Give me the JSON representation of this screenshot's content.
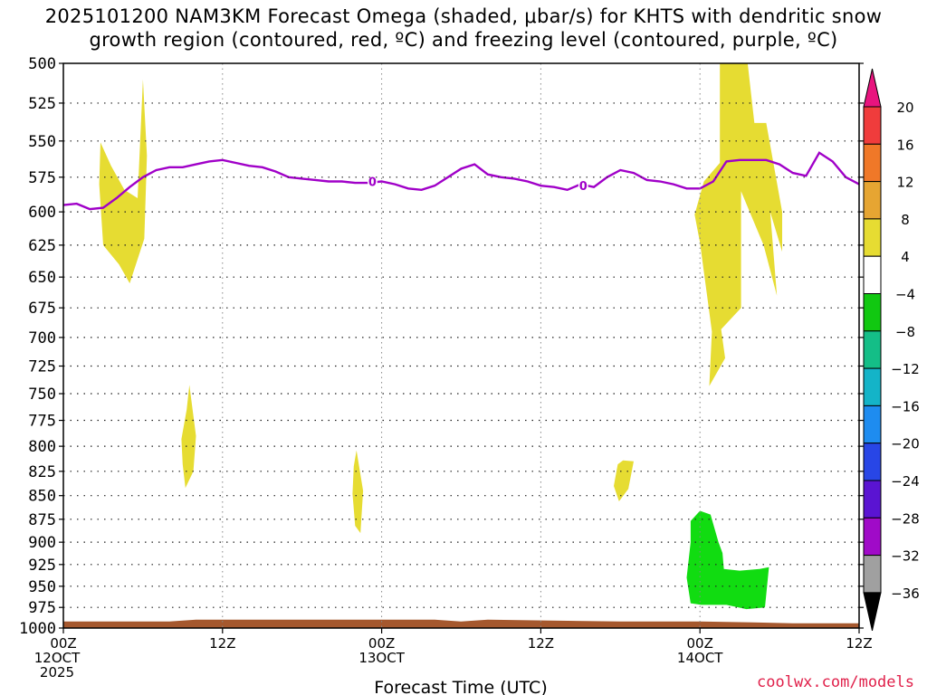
{
  "title_line1": "2025101200 NAM3KM Forecast Omega (shaded, μbar/s) for KHTS with dendritic snow",
  "title_line2": "growth region (contoured, red, ºC) and freezing level (contoured, purple, ºC)",
  "credit": "coolwx.com/models",
  "chart_data": {
    "type": "time-height cross section",
    "xlabel": "Forecast Time (UTC)",
    "x_ticks": [
      {
        "hour": 0,
        "lines": [
          "00Z",
          "12OCT",
          "2025"
        ]
      },
      {
        "hour": 12,
        "lines": [
          "12Z"
        ]
      },
      {
        "hour": 24,
        "lines": [
          "00Z",
          "13OCT"
        ]
      },
      {
        "hour": 36,
        "lines": [
          "12Z"
        ]
      },
      {
        "hour": 48,
        "lines": [
          "00Z",
          "14OCT"
        ]
      },
      {
        "hour": 60,
        "lines": [
          "12Z"
        ]
      }
    ],
    "x_range_hours": [
      0,
      60
    ],
    "y_levels_hpa": [
      500,
      525,
      550,
      575,
      600,
      625,
      650,
      675,
      700,
      725,
      750,
      775,
      800,
      825,
      850,
      875,
      900,
      925,
      950,
      975,
      1000
    ],
    "y_scale": "log-pressure, inverted",
    "grid": "dotted",
    "freezing_level": {
      "color": "#a000c8",
      "label": "0",
      "points": [
        [
          0,
          595
        ],
        [
          1,
          594
        ],
        [
          2,
          598
        ],
        [
          3,
          597
        ],
        [
          4,
          590
        ],
        [
          5,
          582
        ],
        [
          6,
          575
        ],
        [
          7,
          570
        ],
        [
          8,
          568
        ],
        [
          9,
          568
        ],
        [
          10,
          566
        ],
        [
          11,
          564
        ],
        [
          12,
          563
        ],
        [
          13,
          565
        ],
        [
          14,
          567
        ],
        [
          15,
          568
        ],
        [
          16,
          571
        ],
        [
          17,
          575
        ],
        [
          18,
          576
        ],
        [
          19,
          577
        ],
        [
          20,
          578
        ],
        [
          21,
          578
        ],
        [
          22,
          579
        ],
        [
          23,
          579
        ],
        [
          24,
          578
        ],
        [
          25,
          580
        ],
        [
          26,
          583
        ],
        [
          27,
          584
        ],
        [
          28,
          581
        ],
        [
          29,
          575
        ],
        [
          30,
          569
        ],
        [
          31,
          566
        ],
        [
          32,
          573
        ],
        [
          33,
          575
        ],
        [
          34,
          576
        ],
        [
          35,
          578
        ],
        [
          36,
          581
        ],
        [
          37,
          582
        ],
        [
          38,
          584
        ],
        [
          39,
          580
        ],
        [
          40,
          582
        ],
        [
          41,
          575
        ],
        [
          42,
          570
        ],
        [
          43,
          572
        ],
        [
          44,
          577
        ],
        [
          45,
          578
        ],
        [
          46,
          580
        ],
        [
          47,
          583
        ],
        [
          48,
          583
        ],
        [
          49,
          578
        ],
        [
          50,
          564
        ],
        [
          51,
          563
        ],
        [
          52,
          563
        ],
        [
          53,
          563
        ],
        [
          54,
          566
        ],
        [
          55,
          572
        ],
        [
          56,
          574
        ],
        [
          57,
          558
        ],
        [
          58,
          564
        ],
        [
          59,
          575
        ],
        [
          60,
          580
        ]
      ],
      "value_labels": [
        {
          "hour": 23.3,
          "hpa": 578
        },
        {
          "hour": 39.2,
          "hpa": 581
        }
      ]
    },
    "omega_regions": [
      {
        "class": "4 to 8",
        "color": "#e6dc32",
        "points": [
          [
            2.8,
            551
          ],
          [
            3.6,
            567
          ],
          [
            4.6,
            584
          ],
          [
            5.6,
            590
          ],
          [
            6.0,
            510
          ],
          [
            6.3,
            560
          ],
          [
            6.1,
            620
          ],
          [
            5.0,
            655
          ],
          [
            4.2,
            640
          ],
          [
            3.0,
            625
          ],
          [
            2.7,
            580
          ]
        ]
      },
      {
        "class": "4 to 8",
        "color": "#e6dc32",
        "points": [
          [
            9.5,
            742
          ],
          [
            10.0,
            790
          ],
          [
            9.8,
            825
          ],
          [
            9.2,
            842
          ],
          [
            9.0,
            818
          ],
          [
            8.9,
            793
          ],
          [
            9.3,
            765
          ]
        ]
      },
      {
        "class": "4 to 8",
        "color": "#e6dc32",
        "points": [
          [
            22.1,
            804
          ],
          [
            22.6,
            845
          ],
          [
            22.4,
            890
          ],
          [
            22.0,
            882
          ],
          [
            21.8,
            848
          ],
          [
            21.9,
            820
          ]
        ]
      },
      {
        "class": "4 to 8",
        "color": "#e6dc32",
        "points": [
          [
            42.2,
            814
          ],
          [
            43.0,
            815
          ],
          [
            42.6,
            843
          ],
          [
            41.9,
            856
          ],
          [
            41.5,
            840
          ],
          [
            41.8,
            818
          ]
        ]
      },
      {
        "class": "4 to 8",
        "color": "#e6dc32",
        "points": [
          [
            49.5,
            500
          ],
          [
            51.6,
            500
          ],
          [
            52.1,
            538
          ],
          [
            53.0,
            538
          ],
          [
            54.2,
            600
          ],
          [
            54.2,
            630
          ],
          [
            53.3,
            600
          ],
          [
            53.8,
            665
          ],
          [
            52.8,
            625
          ],
          [
            51.1,
            585
          ],
          [
            51.1,
            675
          ],
          [
            49.6,
            693
          ],
          [
            49.9,
            718
          ],
          [
            48.7,
            743
          ],
          [
            48.9,
            695
          ],
          [
            48.0,
            623
          ],
          [
            47.6,
            602
          ],
          [
            48.3,
            578
          ],
          [
            49.5,
            565
          ]
        ]
      }
    ],
    "omega_negative_regions": [
      {
        "class": "-4 to -8",
        "color": "#11dc11",
        "points": [
          [
            47.3,
            877
          ],
          [
            48.0,
            866
          ],
          [
            48.8,
            870
          ],
          [
            49.4,
            900
          ],
          [
            49.7,
            912
          ],
          [
            49.8,
            930
          ],
          [
            51.0,
            932
          ],
          [
            52.5,
            930
          ],
          [
            53.2,
            928
          ],
          [
            52.9,
            975
          ],
          [
            51.5,
            977
          ],
          [
            50.0,
            972
          ],
          [
            48.1,
            972
          ],
          [
            47.3,
            970
          ],
          [
            47.0,
            940
          ],
          [
            47.3,
            900
          ]
        ]
      }
    ],
    "terrain": {
      "color": "#a5582e",
      "top_hpa_approx": 992,
      "bottom_hpa": 1000
    },
    "colorbar": {
      "classes": [
        {
          "range": ">20",
          "color": "#e8147e"
        },
        {
          "range": "16–20",
          "color": "#f03c3c"
        },
        {
          "range": "12–16",
          "color": "#f07828"
        },
        {
          "range": "8–12",
          "color": "#e6a532"
        },
        {
          "range": "4–8",
          "color": "#e6dc32"
        },
        {
          "range": "-4–4",
          "color": "#ffffff"
        },
        {
          "range": "-8–-4",
          "color": "#11c811"
        },
        {
          "range": "-12–-8",
          "color": "#14be87"
        },
        {
          "range": "-16–-12",
          "color": "#14b4c8"
        },
        {
          "range": "-20–-16",
          "color": "#1e8cf0"
        },
        {
          "range": "-24–-20",
          "color": "#2846e6"
        },
        {
          "range": "-28–-24",
          "color": "#5a14d2"
        },
        {
          "range": "-32–-28",
          "color": "#a00ac8"
        },
        {
          "range": "-36–-32",
          "color": "#a0a0a0"
        },
        {
          "range": "<-36",
          "color": "#000000"
        }
      ],
      "labels": [
        "20",
        "16",
        "12",
        "8",
        "4",
        "−4",
        "−8",
        "−12",
        "−16",
        "−20",
        "−24",
        "−28",
        "−32",
        "−36"
      ]
    }
  }
}
